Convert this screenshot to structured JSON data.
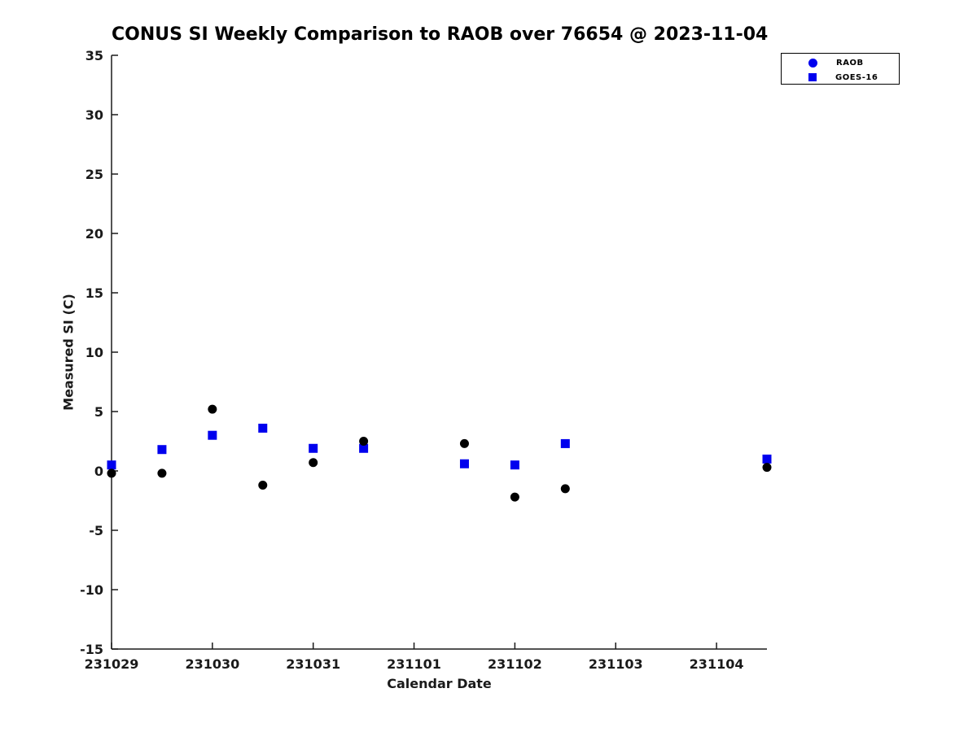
{
  "chart_data": {
    "type": "scatter",
    "title": "CONUS SI Weekly Comparison to RAOB over 76654 @ 2023-11-04",
    "xlabel": "Calendar Date",
    "ylabel": "Measured SI (C)",
    "xlim": [
      0,
      6.5
    ],
    "ylim": [
      -15,
      35
    ],
    "x_tick_positions": [
      0,
      1,
      2,
      3,
      4,
      5,
      6
    ],
    "x_tick_labels": [
      "231029",
      "231030",
      "231031",
      "231101",
      "231102",
      "231103",
      "231104"
    ],
    "y_ticks": [
      35,
      30,
      25,
      20,
      15,
      10,
      5,
      0,
      -5,
      -10,
      -15
    ],
    "grid": false,
    "legend": {
      "position": "top-right",
      "entries": [
        "RAOB",
        "GOES-16"
      ]
    },
    "series": [
      {
        "name": "RAOB",
        "marker": "circle",
        "color": "#000000",
        "legend_marker_color": "#0000EE",
        "x": [
          0,
          0.5,
          1,
          1.5,
          2,
          2.5,
          3.5,
          4,
          4.5,
          6.5
        ],
        "y": [
          -0.2,
          -0.2,
          5.2,
          -1.2,
          0.7,
          2.5,
          2.3,
          -2.2,
          -1.5,
          0.3
        ]
      },
      {
        "name": "GOES-16",
        "marker": "square",
        "color": "#0000EE",
        "legend_marker_color": "#0000EE",
        "x": [
          0,
          0.5,
          1,
          1.5,
          2,
          2.5,
          3.5,
          4,
          4.5,
          6.5
        ],
        "y": [
          0.5,
          1.8,
          3.0,
          3.6,
          1.9,
          1.9,
          0.6,
          0.5,
          2.3,
          1.0
        ]
      }
    ],
    "axis_color": "#1a1a1a"
  }
}
